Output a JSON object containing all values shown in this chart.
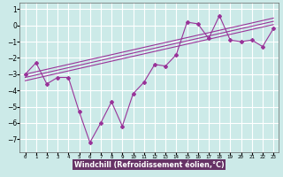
{
  "xlabel": "Windchill (Refroidissement éolien,°C)",
  "x_values": [
    0,
    1,
    2,
    3,
    4,
    5,
    6,
    7,
    8,
    9,
    10,
    11,
    12,
    13,
    14,
    15,
    16,
    17,
    18,
    19,
    20,
    21,
    22,
    23
  ],
  "main_data": [
    -3,
    -2.3,
    -3.6,
    -3.2,
    -3.2,
    -5.3,
    -7.2,
    -6.0,
    -4.7,
    -6.2,
    -4.2,
    -3.5,
    -2.4,
    -2.5,
    -1.8,
    0.2,
    0.1,
    -0.8,
    0.6,
    -0.9,
    -1.0,
    -0.9,
    -1.3,
    -0.2
  ],
  "trend1": [
    -3.0,
    -2.85,
    -2.7,
    -2.55,
    -2.4,
    -2.25,
    -2.1,
    -1.95,
    -1.8,
    -1.65,
    -1.5,
    -1.35,
    -1.2,
    -1.05,
    -0.9,
    -0.75,
    -0.6,
    -0.45,
    -0.3,
    -0.15,
    0.0,
    0.15,
    0.3,
    0.45
  ],
  "trend2": [
    -3.2,
    -3.05,
    -2.9,
    -2.75,
    -2.6,
    -2.45,
    -2.3,
    -2.15,
    -2.0,
    -1.85,
    -1.7,
    -1.55,
    -1.4,
    -1.25,
    -1.1,
    -0.95,
    -0.8,
    -0.65,
    -0.5,
    -0.35,
    -0.2,
    -0.05,
    0.1,
    0.25
  ],
  "trend3": [
    -3.4,
    -3.25,
    -3.1,
    -2.95,
    -2.8,
    -2.65,
    -2.5,
    -2.35,
    -2.2,
    -2.05,
    -1.9,
    -1.75,
    -1.6,
    -1.45,
    -1.3,
    -1.15,
    -1.0,
    -0.85,
    -0.7,
    -0.55,
    -0.4,
    -0.25,
    -0.1,
    0.05
  ],
  "line_color": "#993399",
  "bg_color": "#cceae8",
  "grid_color": "#ffffff",
  "xlabel_bg": "#663366",
  "xlabel_fg": "#ffffff",
  "ylim": [
    -7.8,
    1.4
  ],
  "yticks": [
    1,
    0,
    -1,
    -2,
    -3,
    -4,
    -5,
    -6,
    -7
  ],
  "xlim": [
    -0.5,
    23.5
  ]
}
